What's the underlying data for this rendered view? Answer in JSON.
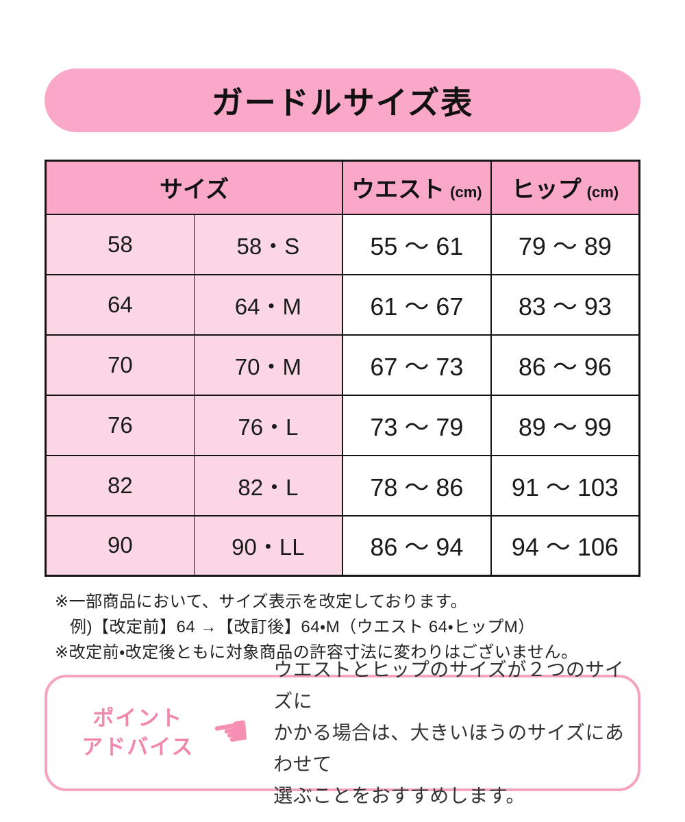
{
  "title": "ガードルサイズ表",
  "colors": {
    "header_pink": "#f9a8c7",
    "row_pink": "#fbd7e6",
    "accent_pink": "#f287ae",
    "box_border_pink": "#f5a3c0",
    "table_border": "#151515",
    "background": "#ffffff"
  },
  "table": {
    "headers": {
      "size": "サイズ",
      "waist": "ウエスト",
      "hip": "ヒップ",
      "unit": "(cm)"
    },
    "rows": [
      {
        "size": "58",
        "size_label": "58・S",
        "waist": "55 〜 61",
        "hip": "79 〜 89"
      },
      {
        "size": "64",
        "size_label": "64・M",
        "waist": "61 〜 67",
        "hip": "83 〜 93"
      },
      {
        "size": "70",
        "size_label": "70・M",
        "waist": "67 〜 73",
        "hip": "86 〜 96"
      },
      {
        "size": "76",
        "size_label": "76・L",
        "waist": "73 〜 79",
        "hip": "89 〜 99"
      },
      {
        "size": "82",
        "size_label": "82・L",
        "waist": "78 〜 86",
        "hip": "91 〜 103"
      },
      {
        "size": "90",
        "size_label": "90・LL",
        "waist": "86 〜 94",
        "hip": "94 〜 106"
      }
    ]
  },
  "notes": {
    "line1": "※一部商品において、サイズ表示を改定しております。",
    "line2": "例)【改定前】64 →【改訂後】64・M（ウエスト 64・ヒップM）",
    "line3": "※改定前・改定後ともに対象商品の許容寸法に変わりはございません。"
  },
  "advice": {
    "label_line1": "ポイント",
    "label_line2": "アドバイス",
    "hand_glyph": "☚",
    "text_lines": [
      "ウエストとヒップのサイズが２つのサイズに",
      "かかる場合は、大きいほうのサイズにあわせて",
      "選ぶことをおすすめします。"
    ]
  }
}
